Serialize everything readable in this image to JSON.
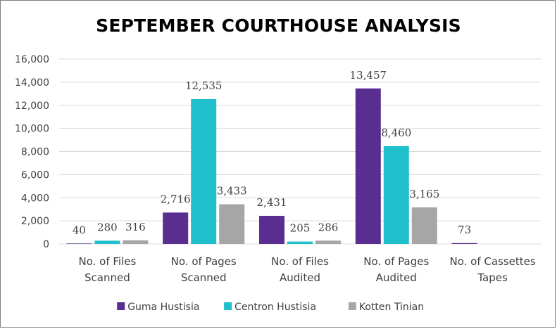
{
  "chart_data": {
    "type": "bar",
    "title": "SEPTEMBER COURTHOUSE ANALYSIS",
    "categories": [
      [
        "No. of Files",
        "Scanned"
      ],
      [
        "No. of Pages",
        "Scanned"
      ],
      [
        "No. of Files",
        "Audited"
      ],
      [
        "No. of Pages",
        "Audited"
      ],
      [
        "No. of Cassettes",
        "Tapes"
      ]
    ],
    "series": [
      {
        "name": "Guma Hustisia",
        "color": "#5a2d91",
        "values": [
          40,
          2716,
          2431,
          13457,
          73
        ],
        "labels": [
          "40",
          "2,716",
          "2,431",
          "13,457",
          "73"
        ]
      },
      {
        "name": "Centron Hustisia",
        "color": "#1fbfcc",
        "values": [
          280,
          12535,
          205,
          8460,
          null
        ],
        "labels": [
          "280",
          "12,535",
          "205",
          "8,460",
          ""
        ]
      },
      {
        "name": "Kotten Tinian",
        "color": "#a6a6a6",
        "values": [
          316,
          3433,
          286,
          3165,
          null
        ],
        "labels": [
          "316",
          "3,433",
          "286",
          "3,165",
          ""
        ]
      }
    ],
    "ylim": [
      0,
      16000
    ],
    "yticks": [
      0,
      2000,
      4000,
      6000,
      8000,
      10000,
      12000,
      14000,
      16000
    ],
    "ytick_labels": [
      "0",
      "2,000",
      "4,000",
      "6,000",
      "8,000",
      "10,000",
      "12,000",
      "14,000",
      "16,000"
    ],
    "grid": true,
    "legend_position": "bottom"
  }
}
